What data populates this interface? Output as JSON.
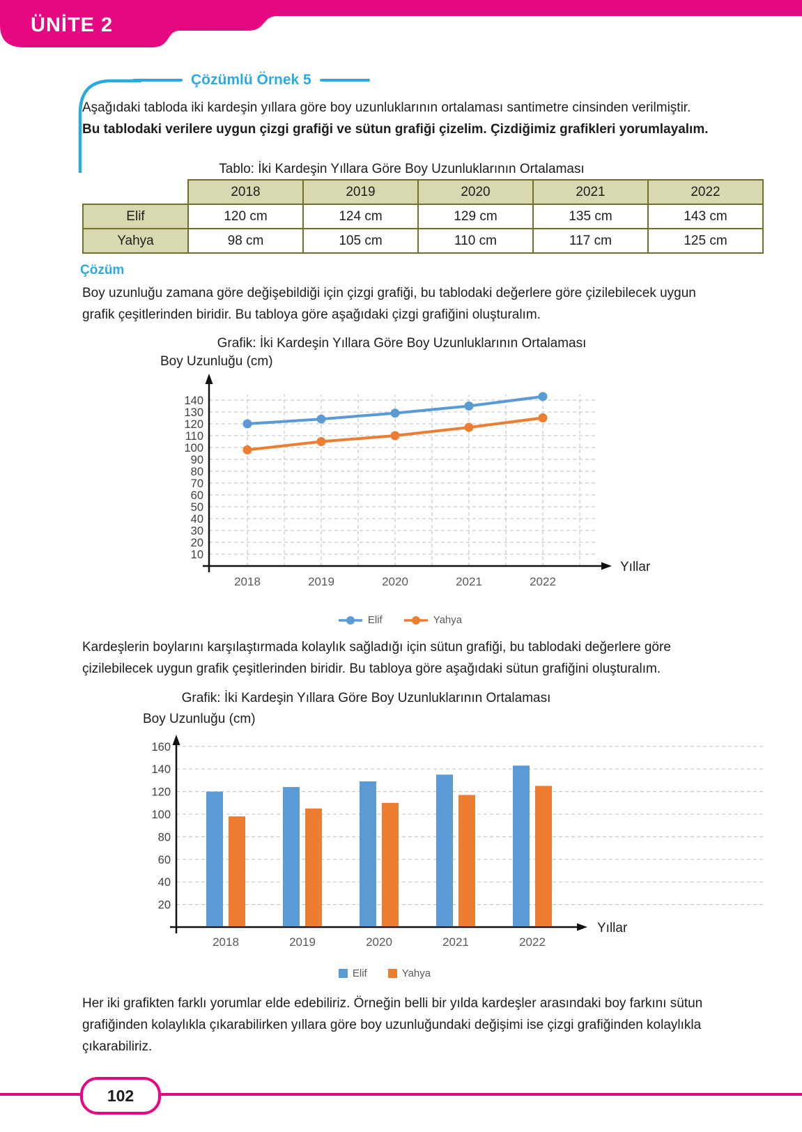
{
  "page": {
    "unit_label": "ÜNİTE 2",
    "page_number": "102"
  },
  "colors": {
    "brand_pink": "#e50880",
    "accent_blue": "#29abe2",
    "table_header_bg": "#d8d9b1",
    "table_border": "#70702a",
    "series_elif": "#5b9bd5",
    "series_yahya": "#ed7d31",
    "gridline": "#c9c9c9"
  },
  "example": {
    "title": "Çözümlü Örnek 5",
    "intro_normal": "Aşağıdaki tabloda iki kardeşin yıllara göre boy uzunluklarının ortalaması santimetre cinsinden verilmiştir.",
    "intro_bold": "Bu tablodaki verilere uygun çizgi grafiği ve sütun grafiği çizelim. Çizdiğimiz grafikleri yorumlayalım."
  },
  "table": {
    "title": "Tablo: İki Kardeşin Yıllara Göre Boy Uzunluklarının Ortalaması",
    "years": [
      "2018",
      "2019",
      "2020",
      "2021",
      "2022"
    ],
    "rows": [
      {
        "name": "Elif",
        "values": [
          "120 cm",
          "124 cm",
          "129 cm",
          "135 cm",
          "143 cm"
        ]
      },
      {
        "name": "Yahya",
        "values": [
          "98 cm",
          "105 cm",
          "110 cm",
          "117 cm",
          "125 cm"
        ]
      }
    ]
  },
  "solution": {
    "heading": "Çözüm",
    "paragraph1": "Boy uzunluğu zamana göre değişebildiği için çizgi grafiği, bu tablodaki değerlere göre çizilebilecek uygun grafik çeşitlerinden biridir. Bu tabloya göre aşağıdaki çizgi grafiğini oluşturalım.",
    "paragraph2": "Kardeşlerin boylarını karşılaştırmada kolaylık sağladığı için sütun grafiği, bu tablodaki değerlere göre çizilebilecek uygun grafik çeşitlerinden biridir. Bu tabloya göre aşağıdaki sütun grafiğini oluşturalım.",
    "paragraph3": "Her iki grafikten farklı yorumlar elde edebiliriz. Örneğin belli bir yılda kardeşler arasındaki boy farkını sütun grafiğinden kolaylıkla çıkarabilirken yıllara göre boy uzunluğundaki değişimi ise çizgi grafiğinden kolaylıkla çıkarabiliriz."
  },
  "chart_data": [
    {
      "type": "line",
      "title": "Grafik: İki Kardeşin Yıllara Göre Boy Uzunluklarının Ortalaması",
      "ylabel": "Boy Uzunluğu (cm)",
      "xlabel": "Yıllar",
      "categories": [
        "2018",
        "2019",
        "2020",
        "2021",
        "2022"
      ],
      "series": [
        {
          "name": "Elif",
          "color": "#5b9bd5",
          "values": [
            120,
            124,
            129,
            135,
            143
          ]
        },
        {
          "name": "Yahya",
          "color": "#ed7d31",
          "values": [
            98,
            105,
            110,
            117,
            125
          ]
        }
      ],
      "yticks": [
        10,
        20,
        30,
        40,
        50,
        60,
        70,
        80,
        90,
        100,
        110,
        120,
        130,
        140
      ],
      "ylim": [
        0,
        150
      ],
      "grid": "horizontal and vertical, dashed",
      "legend_position": "bottom",
      "marker": "circle"
    },
    {
      "type": "bar",
      "title": "Grafik: İki Kardeşin Yıllara Göre Boy Uzunluklarının Ortalaması",
      "ylabel": "Boy Uzunluğu (cm)",
      "xlabel": "Yıllar",
      "categories": [
        "2018",
        "2019",
        "2020",
        "2021",
        "2022"
      ],
      "series": [
        {
          "name": "Elif",
          "color": "#5b9bd5",
          "values": [
            120,
            124,
            129,
            135,
            143
          ]
        },
        {
          "name": "Yahya",
          "color": "#ed7d31",
          "values": [
            98,
            105,
            110,
            117,
            125
          ]
        }
      ],
      "yticks": [
        20,
        40,
        60,
        80,
        100,
        120,
        140,
        160
      ],
      "ylim": [
        0,
        170
      ],
      "grid": "horizontal, dashed",
      "legend_position": "bottom"
    }
  ]
}
